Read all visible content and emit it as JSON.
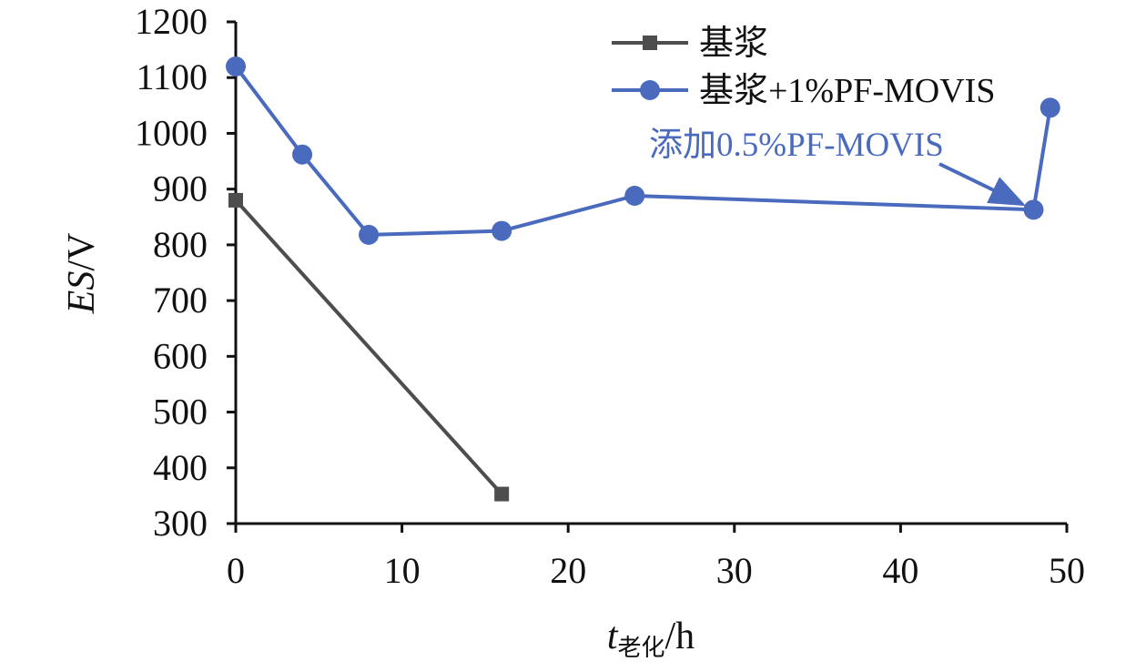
{
  "chart_data": {
    "type": "line",
    "xlabel": {
      "main": "t",
      "sub": "老化",
      "unit": "/h"
    },
    "ylabel": {
      "main": "ES",
      "unit": "/V"
    },
    "xlim": [
      0,
      50
    ],
    "ylim": [
      300,
      1200
    ],
    "x_ticks": [
      0,
      10,
      20,
      30,
      40,
      50
    ],
    "y_ticks": [
      300,
      400,
      500,
      600,
      700,
      800,
      900,
      1000,
      1100,
      1200
    ],
    "grid": false,
    "legend_position": "top-right",
    "series": [
      {
        "name": "基浆",
        "color": "#4d4d4d",
        "marker": "square",
        "points": [
          {
            "x": 0,
            "y": 880
          },
          {
            "x": 16,
            "y": 353
          }
        ]
      },
      {
        "name": "基浆+1%PF-MOVIS",
        "color": "#4a6bbd",
        "marker": "circle",
        "points": [
          {
            "x": 0,
            "y": 1120
          },
          {
            "x": 4,
            "y": 962
          },
          {
            "x": 8,
            "y": 818
          },
          {
            "x": 16,
            "y": 825
          },
          {
            "x": 24,
            "y": 888
          },
          {
            "x": 48,
            "y": 863
          },
          {
            "x": 49,
            "y": 1046
          }
        ]
      }
    ],
    "annotation": {
      "text": "添加0.5%PF-MOVIS",
      "target": {
        "x": 48,
        "y": 863
      },
      "color": "#4a6bbd"
    }
  }
}
